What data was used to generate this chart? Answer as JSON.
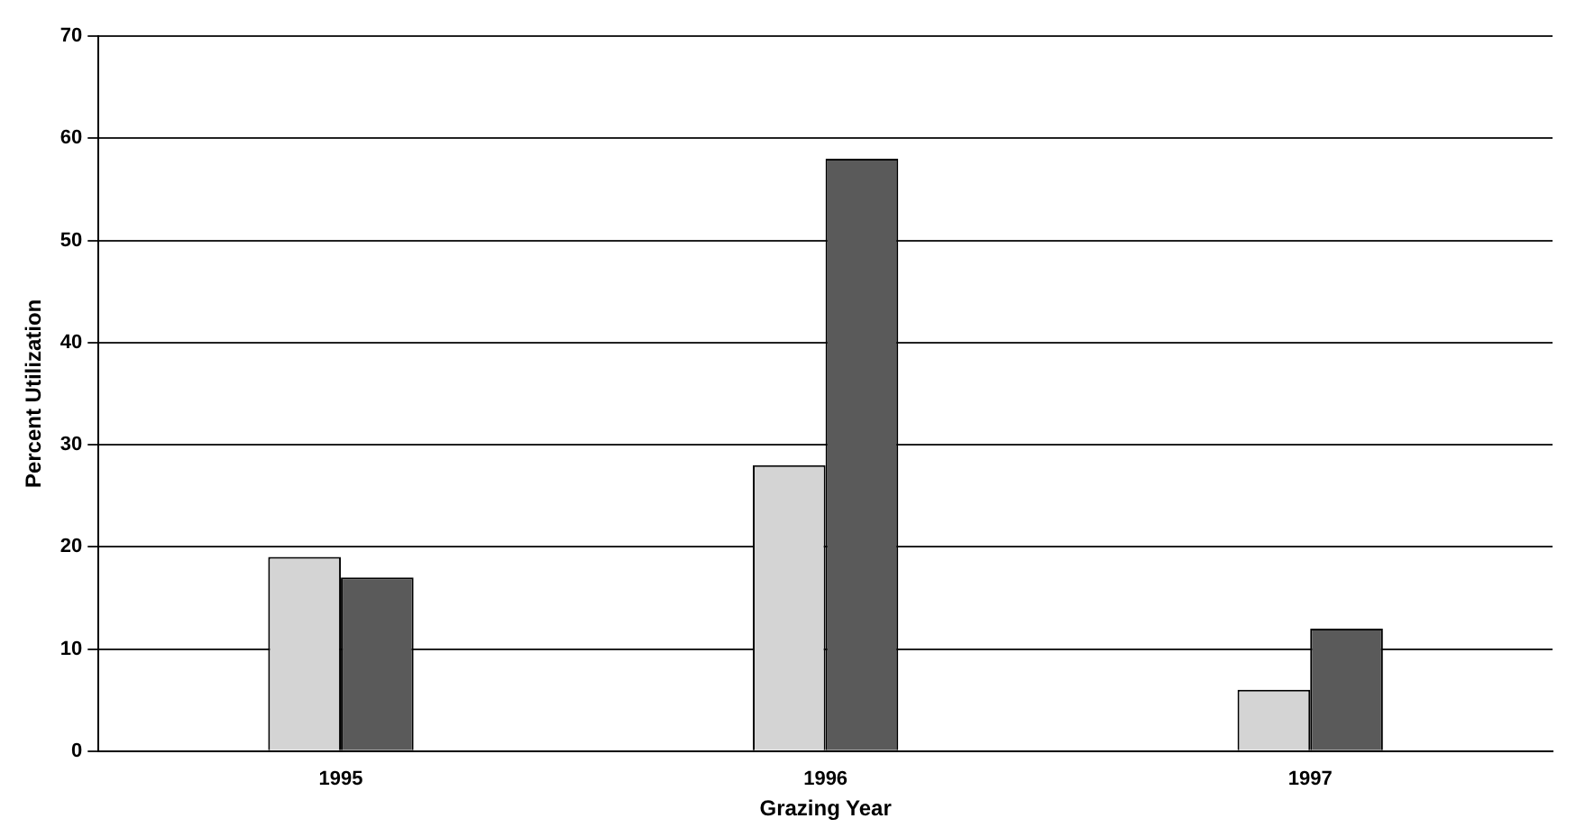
{
  "chart_data": {
    "type": "bar",
    "xlabel": "Grazing Year",
    "ylabel": "Percent Utilization",
    "categories": [
      "1995",
      "1996",
      "1997"
    ],
    "series": [
      {
        "color": "#d4d4d4",
        "values": [
          19,
          28,
          6
        ]
      },
      {
        "color": "#5a5a5a",
        "values": [
          17,
          58,
          12
        ]
      }
    ],
    "ylim": [
      0,
      70
    ],
    "yticks": [
      0,
      10,
      20,
      30,
      40,
      50,
      60,
      70
    ],
    "grid": "y",
    "legend": false
  }
}
